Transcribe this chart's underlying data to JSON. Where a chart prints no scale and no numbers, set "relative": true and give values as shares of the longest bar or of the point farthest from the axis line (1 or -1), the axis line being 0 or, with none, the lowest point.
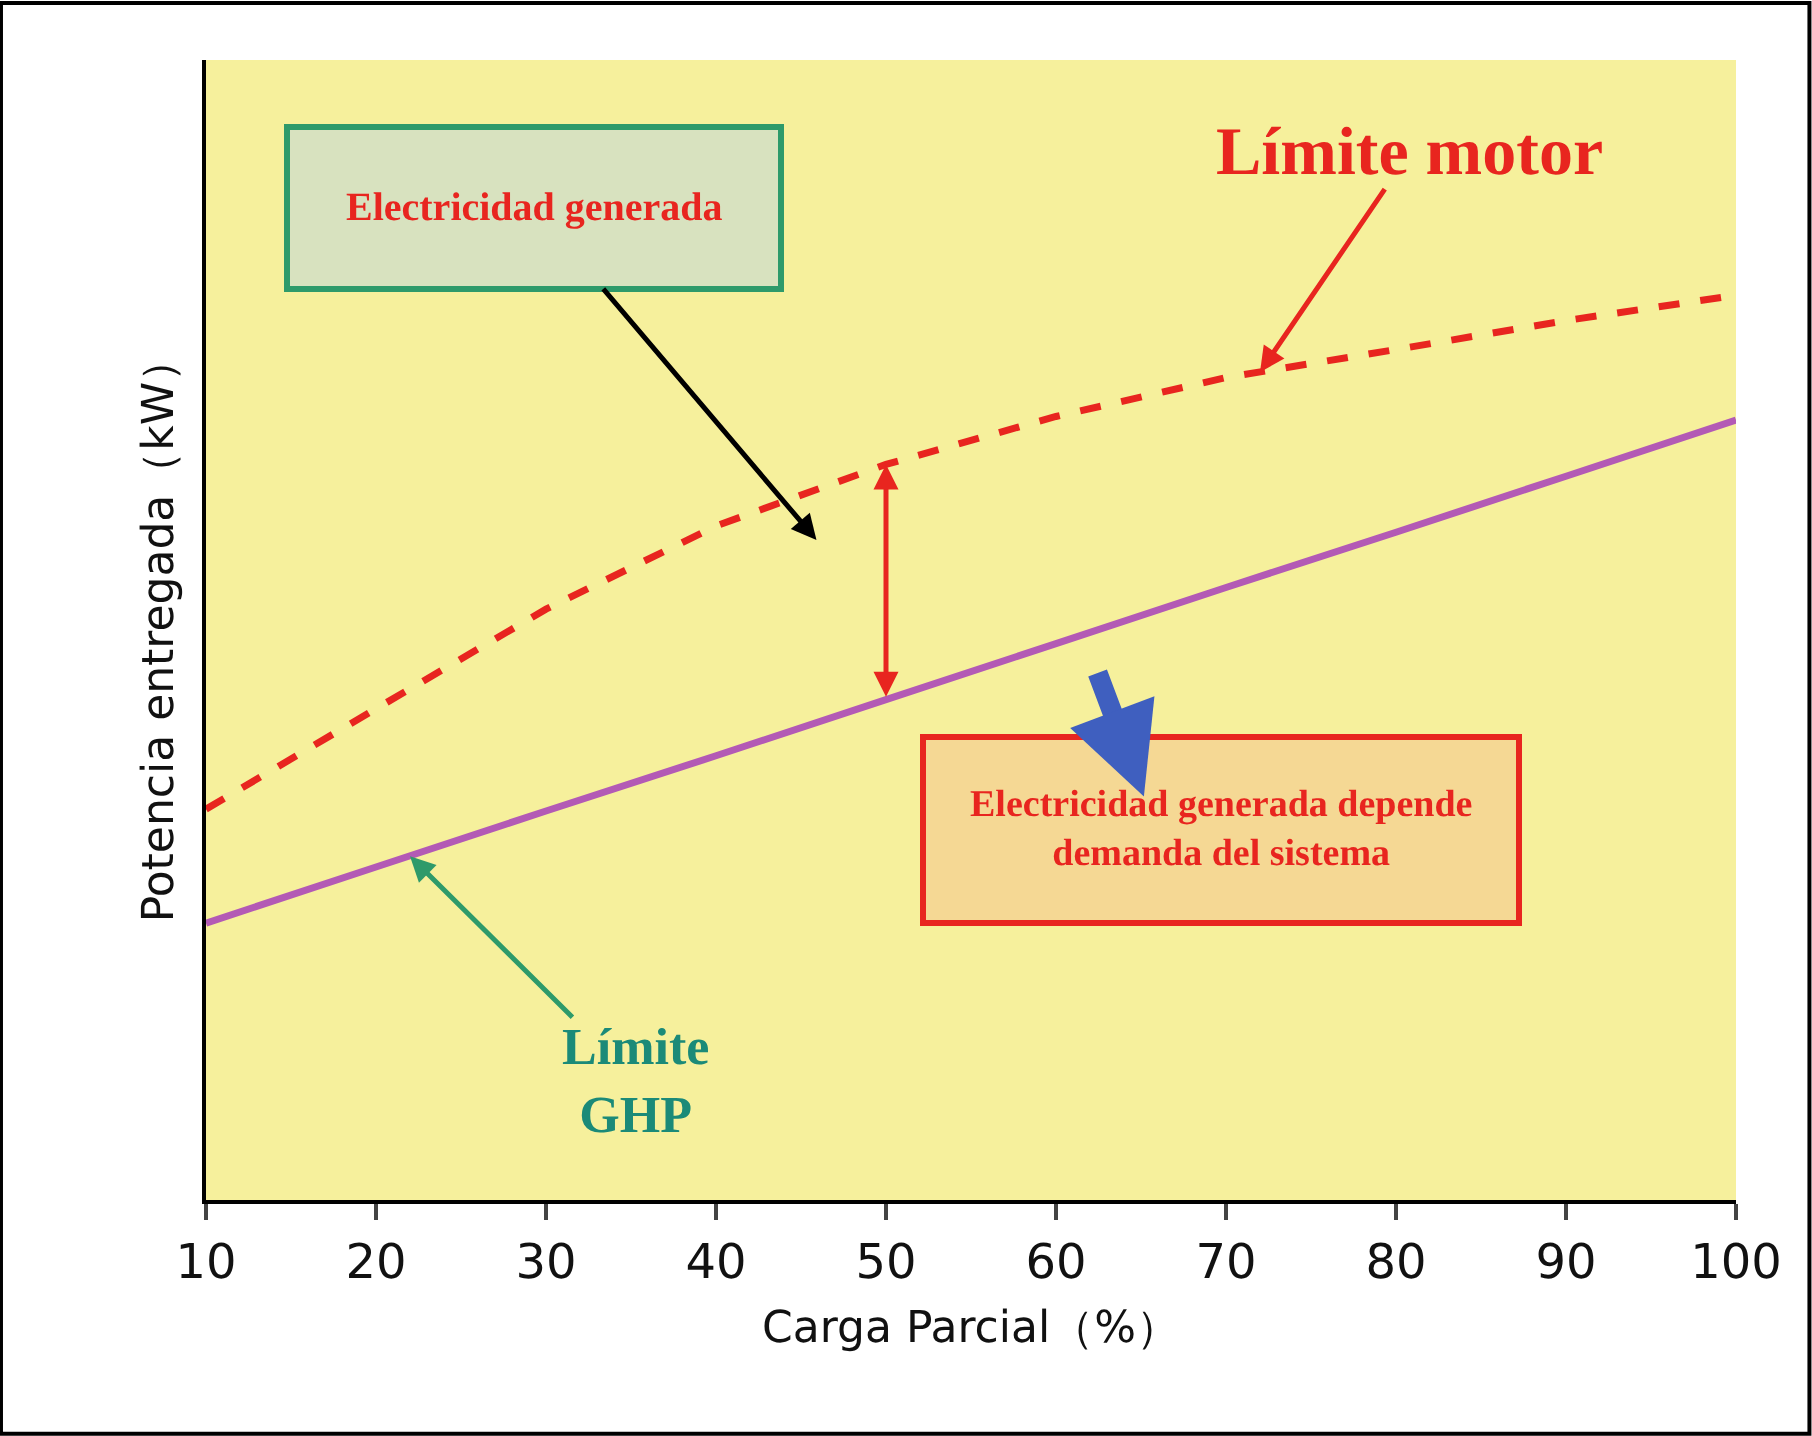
{
  "chart_data": {
    "type": "line",
    "relative": true,
    "xlabel": "Carga Parcial（%）",
    "ylabel": "Potencia entregada（kW）",
    "x": [
      10,
      20,
      30,
      40,
      50,
      60,
      70,
      80,
      90,
      100
    ],
    "xlim": [
      10,
      100
    ],
    "xticks": [
      10,
      20,
      30,
      40,
      50,
      60,
      70,
      80,
      90,
      100
    ],
    "series": [
      {
        "color": "#e8251f",
        "line_style": "dashed",
        "values": [
          0.432,
          0.543,
          0.653,
          0.745,
          0.813,
          0.866,
          0.909,
          0.94,
          0.972,
          1
        ]
      },
      {
        "color": "#b35ab5",
        "line_style": "solid",
        "values": [
          0.306,
          0.368,
          0.43,
          0.491,
          0.553,
          0.615,
          0.677,
          0.738,
          0.8,
          0.862
        ]
      }
    ],
    "annotations": [
      "Electricidad generada",
      {
        "text": "Límite motor",
        "x": 72,
        "y": 0.915
      },
      "Electricidad generada depende demanda del sistema",
      {
        "text": "Límite GHP",
        "x": 22,
        "y": 0.38
      }
    ],
    "grid": false,
    "legend": false,
    "marker": "none"
  }
}
